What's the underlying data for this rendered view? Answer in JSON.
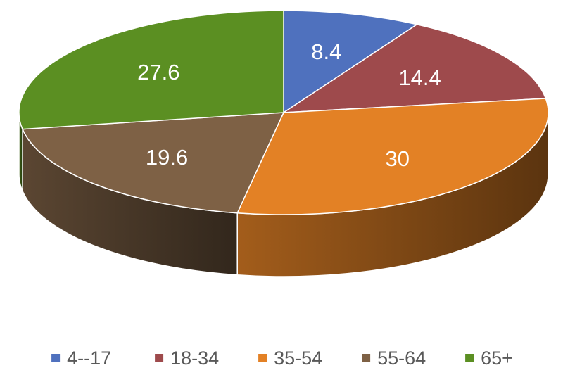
{
  "chart_data": {
    "type": "pie",
    "style": "3d",
    "start": "top",
    "direction": "clockwise",
    "legend_position": "bottom",
    "slices": [
      {
        "label": "4--17",
        "value": 8.4,
        "display": "8.4",
        "color": "#4f71be"
      },
      {
        "label": "18-34",
        "value": 14.4,
        "display": "14.4",
        "color": "#9e4a4c"
      },
      {
        "label": "35-54",
        "value": 30,
        "display": "30",
        "color": "#e38125"
      },
      {
        "label": "55-64",
        "value": 19.6,
        "display": "19.6",
        "color": "#7e6145"
      },
      {
        "label": "65+",
        "value": 27.6,
        "display": "27.6",
        "color": "#5b8f22"
      }
    ]
  }
}
